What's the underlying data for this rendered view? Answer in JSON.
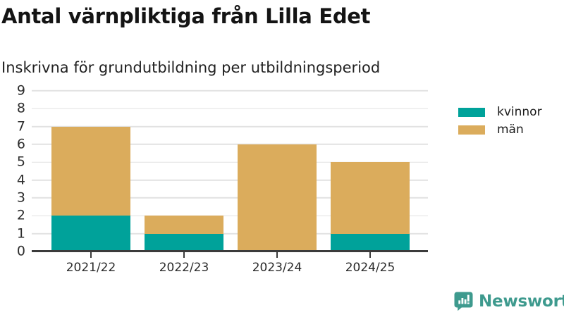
{
  "header": {
    "title": "Antal värnpliktiga från Lilla Edet",
    "subtitle": "Inskrivna för grundutbildning per utbildningsperiod"
  },
  "chart_data": {
    "type": "bar",
    "stacked": true,
    "categories": [
      "2021/22",
      "2022/23",
      "2023/24",
      "2024/25"
    ],
    "series": [
      {
        "name": "kvinnor",
        "color": "#00a29a",
        "values": [
          2,
          1,
          0,
          1
        ]
      },
      {
        "name": "män",
        "color": "#dbac5c",
        "values": [
          5,
          1,
          6,
          4
        ]
      }
    ],
    "totals": [
      7,
      2,
      6,
      5
    ],
    "title": "Antal värnpliktiga från Lilla Edet",
    "subtitle": "Inskrivna för grundutbildning per utbildningsperiod",
    "xlabel": "",
    "ylabel": "",
    "ylim": [
      0,
      9
    ],
    "yticks": [
      0,
      1,
      2,
      3,
      4,
      5,
      6,
      7,
      8,
      9
    ],
    "grid": "horizontal",
    "legend_position": "right"
  },
  "colors": {
    "kvinnor": "#00a29a",
    "man": "#dbac5c",
    "brand": "#3e9a8e",
    "axis": "#3b3b3b",
    "grid": "#e2e2e2"
  },
  "footer": {
    "brand": "Newsworthy"
  }
}
